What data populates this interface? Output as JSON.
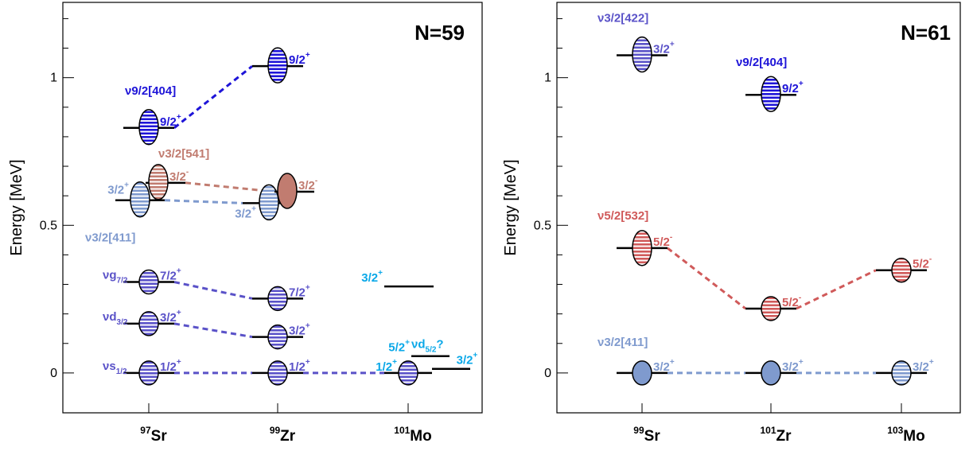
{
  "colors": {
    "blue": "#1e14d8",
    "purple": "#5a52c8",
    "lightblue": "#7f9ace",
    "brown": "#c17c70",
    "red": "#d05a5a",
    "cyan": "#0aa8e8",
    "axis": "#000000"
  },
  "chart_data": [
    {
      "type": "level-scheme",
      "title": "N=59",
      "ylabel": "Energy [MeV]",
      "ylim": [
        -0.135,
        1.255
      ],
      "yticks": [
        0,
        0.5,
        1
      ],
      "ytick_labels": [
        "0",
        "0.5",
        "1"
      ],
      "grid": false,
      "categories": [
        {
          "mass": "97",
          "element": "Sr"
        },
        {
          "mass": "99",
          "element": "Zr"
        },
        {
          "mass": "101",
          "element": "Mo"
        }
      ],
      "levels": [
        {
          "id": "sr97_s12",
          "nucleus": 0,
          "energy": 0.0,
          "spin": "1/2",
          "parity": "+",
          "color": "purple",
          "ellipse": "hatched",
          "label_side": "right"
        },
        {
          "id": "sr97_d32",
          "nucleus": 0,
          "energy": 0.167,
          "spin": "3/2",
          "parity": "+",
          "color": "purple",
          "ellipse": "hatched",
          "label_side": "right"
        },
        {
          "id": "sr97_g72",
          "nucleus": 0,
          "energy": 0.308,
          "spin": "7/2",
          "parity": "+",
          "color": "purple",
          "ellipse": "hatched",
          "label_side": "right"
        },
        {
          "id": "sr97_411",
          "nucleus": 0,
          "energy": 0.585,
          "spin": "3/2",
          "parity": "+",
          "color": "lightblue",
          "ellipse": "hatched",
          "label_side": "left"
        },
        {
          "id": "sr97_541",
          "nucleus": 0,
          "energy": 0.644,
          "spin": "3/2",
          "parity": "-",
          "color": "brown",
          "ellipse": "hatched",
          "label_side": "right"
        },
        {
          "id": "sr97_404",
          "nucleus": 0,
          "energy": 0.83,
          "spin": "9/2",
          "parity": "+",
          "color": "blue",
          "ellipse": "hatched",
          "label_side": "right"
        },
        {
          "id": "zr99_s12",
          "nucleus": 1,
          "energy": 0.0,
          "spin": "1/2",
          "parity": "+",
          "color": "purple",
          "ellipse": "hatched",
          "label_side": "right"
        },
        {
          "id": "zr99_d32",
          "nucleus": 1,
          "energy": 0.122,
          "spin": "3/2",
          "parity": "+",
          "color": "purple",
          "ellipse": "hatched",
          "label_side": "right"
        },
        {
          "id": "zr99_g72",
          "nucleus": 1,
          "energy": 0.252,
          "spin": "7/2",
          "parity": "+",
          "color": "purple",
          "ellipse": "hatched",
          "label_side": "right"
        },
        {
          "id": "zr99_411",
          "nucleus": 1,
          "energy": 0.575,
          "spin": "3/2",
          "parity": "+",
          "color": "lightblue",
          "ellipse": "hatched",
          "label_side": "below-left"
        },
        {
          "id": "zr99_541",
          "nucleus": 1,
          "energy": 0.614,
          "spin": "3/2",
          "parity": "-",
          "color": "brown",
          "ellipse": "solid",
          "label_side": "right"
        },
        {
          "id": "zr99_404",
          "nucleus": 1,
          "energy": 1.039,
          "spin": "9/2",
          "parity": "+",
          "color": "blue",
          "ellipse": "hatched",
          "label_side": "right"
        },
        {
          "id": "mo101_g",
          "nucleus": 2,
          "energy": 0.0,
          "spin": "1/2",
          "parity": "+",
          "color": "purple",
          "ellipse": "hatched",
          "label_side": "left",
          "label_color": "cyan"
        },
        {
          "id": "mo101_52",
          "nucleus": 2,
          "energy": 0.057,
          "spin": "5/2",
          "parity": "+",
          "color": "cyan",
          "ellipse": "none",
          "label_side": "left"
        },
        {
          "id": "mo101_32b",
          "nucleus": 2,
          "energy": 0.014,
          "spin": "3/2",
          "parity": "+",
          "color": "cyan",
          "ellipse": "none",
          "label_side": "right-above"
        },
        {
          "id": "mo101_32",
          "nucleus": 2,
          "energy": 0.293,
          "spin": "3/2",
          "parity": "+",
          "color": "cyan",
          "ellipse": "none",
          "label_side": "left"
        }
      ],
      "connections": [
        {
          "from": "sr97_s12",
          "to": "zr99_s12",
          "color": "purple"
        },
        {
          "from": "zr99_s12",
          "to": "mo101_g",
          "color": "purple"
        },
        {
          "from": "sr97_d32",
          "to": "zr99_d32",
          "color": "purple"
        },
        {
          "from": "sr97_g72",
          "to": "zr99_g72",
          "color": "purple"
        },
        {
          "from": "sr97_411",
          "to": "zr99_411",
          "color": "lightblue"
        },
        {
          "from": "sr97_541",
          "to": "zr99_541",
          "color": "brown"
        },
        {
          "from": "sr97_404",
          "to": "zr99_404",
          "color": "blue"
        }
      ],
      "annotations": [
        {
          "text": "νs",
          "sub": "1/2",
          "nucleus": 0,
          "energy": 0.0,
          "color": "purple",
          "dx": -58,
          "dy": -4
        },
        {
          "text": "νd",
          "sub": "3/2",
          "nucleus": 0,
          "energy": 0.167,
          "color": "purple",
          "dx": -58,
          "dy": -4
        },
        {
          "text": "νg",
          "sub": "7/2",
          "nucleus": 0,
          "energy": 0.308,
          "color": "purple",
          "dx": -58,
          "dy": -4
        },
        {
          "text": "ν3/2[411]",
          "nucleus": 0,
          "energy": 0.585,
          "color": "lightblue",
          "dx": -80,
          "dy": 52
        },
        {
          "text": "ν3/2[541]",
          "nucleus": 0,
          "energy": 0.644,
          "color": "brown",
          "dx": 12,
          "dy": -32
        },
        {
          "text": "ν9/2[404]",
          "nucleus": 0,
          "energy": 0.83,
          "color": "blue",
          "dx": -30,
          "dy": -42
        },
        {
          "text": "νd",
          "sub": "5/2",
          "tail": "?",
          "nucleus": 2,
          "energy": 0.057,
          "color": "cyan",
          "dx": 4,
          "dy": -10
        }
      ]
    },
    {
      "type": "level-scheme",
      "title": "N=61",
      "ylabel": "Energy [MeV]",
      "ylim": [
        -0.135,
        1.255
      ],
      "yticks": [
        0,
        0.5,
        1
      ],
      "ytick_labels": [
        "0",
        "0.5",
        "1"
      ],
      "grid": false,
      "categories": [
        {
          "mass": "99",
          "element": "Sr"
        },
        {
          "mass": "101",
          "element": "Zr"
        },
        {
          "mass": "103",
          "element": "Mo"
        }
      ],
      "levels": [
        {
          "id": "sr99_g",
          "nucleus": 0,
          "energy": 0.0,
          "spin": "3/2",
          "parity": "+",
          "color": "lightblue",
          "ellipse": "solid",
          "label_side": "right"
        },
        {
          "id": "sr99_532",
          "nucleus": 0,
          "energy": 0.423,
          "spin": "5/2",
          "parity": "-",
          "color": "red",
          "ellipse": "hatched",
          "label_side": "right"
        },
        {
          "id": "sr99_422",
          "nucleus": 0,
          "energy": 1.076,
          "spin": "3/2",
          "parity": "+",
          "color": "purple",
          "ellipse": "hatched",
          "label_side": "right"
        },
        {
          "id": "zr101_g",
          "nucleus": 1,
          "energy": 0.0,
          "spin": "3/2",
          "parity": "+",
          "color": "lightblue",
          "ellipse": "solid",
          "label_side": "right"
        },
        {
          "id": "zr101_532",
          "nucleus": 1,
          "energy": 0.218,
          "spin": "5/2",
          "parity": "-",
          "color": "red",
          "ellipse": "hatched",
          "label_side": "right"
        },
        {
          "id": "zr101_404",
          "nucleus": 1,
          "energy": 0.942,
          "spin": "9/2",
          "parity": "+",
          "color": "blue",
          "ellipse": "hatched",
          "label_side": "right"
        },
        {
          "id": "mo103_g",
          "nucleus": 2,
          "energy": 0.0,
          "spin": "3/2",
          "parity": "+",
          "color": "lightblue",
          "ellipse": "hatched",
          "label_side": "right"
        },
        {
          "id": "mo103_532",
          "nucleus": 2,
          "energy": 0.348,
          "spin": "5/2",
          "parity": "-",
          "color": "red",
          "ellipse": "hatched",
          "label_side": "right"
        }
      ],
      "connections": [
        {
          "from": "sr99_g",
          "to": "zr101_g",
          "color": "lightblue"
        },
        {
          "from": "zr101_g",
          "to": "mo103_g",
          "color": "lightblue"
        },
        {
          "from": "sr99_532",
          "to": "zr101_532",
          "color": "red"
        },
        {
          "from": "zr101_532",
          "to": "mo103_532",
          "color": "red"
        }
      ],
      "annotations": [
        {
          "text": "ν3/2[411]",
          "nucleus": 0,
          "energy": 0.0,
          "color": "lightblue",
          "dx": -56,
          "dy": -34
        },
        {
          "text": "ν5/2[532]",
          "nucleus": 0,
          "energy": 0.423,
          "color": "red",
          "dx": -56,
          "dy": -36
        },
        {
          "text": "ν3/2[422]",
          "nucleus": 0,
          "energy": 1.076,
          "color": "purple",
          "dx": -56,
          "dy": -42
        },
        {
          "text": "ν9/2[404]",
          "nucleus": 1,
          "energy": 0.942,
          "color": "blue",
          "dx": -44,
          "dy": -36
        }
      ]
    }
  ]
}
